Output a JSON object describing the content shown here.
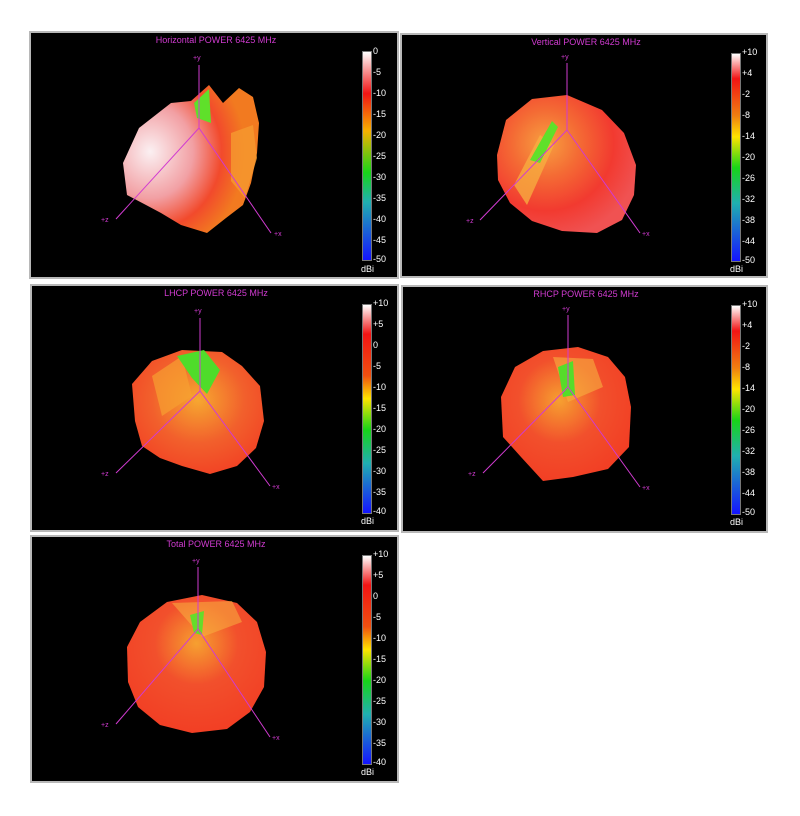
{
  "panels": [
    {
      "id": "horizontal",
      "title": "Horizontal POWER 6425  MHz",
      "colorbar_ticks": [
        "0",
        "-5",
        "-10",
        "-15",
        "-20",
        "-25",
        "-30",
        "-35",
        "-40",
        "-45",
        "-50"
      ],
      "unit": "dBi",
      "axes": {
        "y": "+y",
        "z": "+z",
        "x": "+x"
      }
    },
    {
      "id": "vertical",
      "title": "Vertical POWER 6425  MHz",
      "colorbar_ticks": [
        "+10",
        "+4",
        "-2",
        "-8",
        "-14",
        "-20",
        "-26",
        "-32",
        "-38",
        "-44",
        "-50"
      ],
      "unit": "dBi",
      "axes": {
        "y": "+y",
        "z": "+z",
        "x": "+x"
      }
    },
    {
      "id": "lhcp",
      "title": "LHCP POWER 6425  MHz",
      "colorbar_ticks": [
        "+10",
        "+5",
        "0",
        "-5",
        "-10",
        "-15",
        "-20",
        "-25",
        "-30",
        "-35",
        "-40"
      ],
      "unit": "dBi",
      "axes": {
        "y": "+y",
        "z": "+z",
        "x": "+x"
      }
    },
    {
      "id": "rhcp",
      "title": "RHCP POWER 6425  MHz",
      "colorbar_ticks": [
        "+10",
        "+4",
        "-2",
        "-8",
        "-14",
        "-20",
        "-26",
        "-32",
        "-38",
        "-44",
        "-50"
      ],
      "unit": "dBi",
      "axes": {
        "y": "+y",
        "z": "+z",
        "x": "+x"
      }
    },
    {
      "id": "total",
      "title": "Total POWER 6425  MHz",
      "colorbar_ticks": [
        "+10",
        "+5",
        "0",
        "-5",
        "-10",
        "-15",
        "-20",
        "-25",
        "-30",
        "-35",
        "-40"
      ],
      "unit": "dBi",
      "axes": {
        "y": "+y",
        "z": "+z",
        "x": "+x"
      }
    }
  ],
  "colors": {
    "axis": "#d13bd1",
    "pattern_red": "#f23a22",
    "pattern_orange": "#f77a2a",
    "pattern_green": "#3fe02a",
    "pattern_white": "#f4e8ea",
    "colorbar": [
      "#ffffff",
      "#f21414",
      "#ffe400",
      "#18d418",
      "#1414ff"
    ]
  }
}
